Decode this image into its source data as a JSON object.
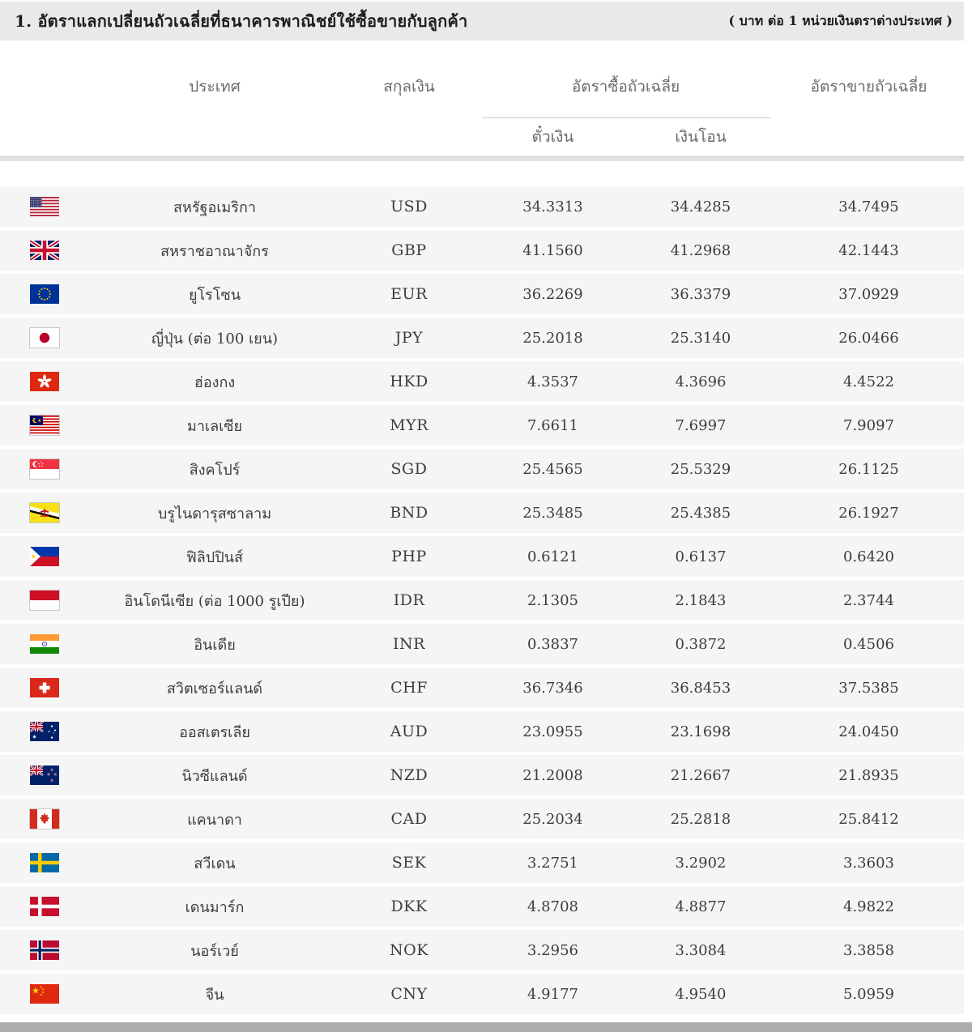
{
  "title": "1. อัตราแลกเปลี่ยนถัวเฉลี่ยที่ธนาคารพาณิชย์ใช้ซื้อขายกับลูกค้า",
  "unit_note": "( บาท ต่อ 1 หน่วยเงินตราต่างประเทศ )",
  "columns": {
    "country": "ประเทศ",
    "currency": "สกุลเงิน",
    "buy_avg": "อัตราซื้อถัวเฉลี่ย",
    "buy_bill": "ตั๋วเงิน",
    "buy_transfer": "เงินโอน",
    "sell_avg": "อัตราขายถัวเฉลี่ย"
  },
  "colors": {
    "title_bar_bg": "#e9e9e9",
    "row_bg": "#f5f5f5",
    "divider": "#e2e2e2",
    "bottom_bar": "#adadad",
    "header_text": "#6b6b6b",
    "title_text": "#1c1c1c",
    "value_text": "#3d3d3d"
  },
  "rows": [
    {
      "flag": "us",
      "country": "สหรัฐอเมริกา",
      "code": "USD",
      "bill": "34.3313",
      "transfer": "34.4285",
      "sell": "34.7495"
    },
    {
      "flag": "gb",
      "country": "สหราชอาณาจักร",
      "code": "GBP",
      "bill": "41.1560",
      "transfer": "41.2968",
      "sell": "42.1443"
    },
    {
      "flag": "eu",
      "country": "ยูโรโซน",
      "code": "EUR",
      "bill": "36.2269",
      "transfer": "36.3379",
      "sell": "37.0929"
    },
    {
      "flag": "jp",
      "country": "ญี่ปุ่น (ต่อ 100 เยน)",
      "code": "JPY",
      "bill": "25.2018",
      "transfer": "25.3140",
      "sell": "26.0466"
    },
    {
      "flag": "hk",
      "country": "ฮ่องกง",
      "code": "HKD",
      "bill": "4.3537",
      "transfer": "4.3696",
      "sell": "4.4522"
    },
    {
      "flag": "my",
      "country": "มาเลเซีย",
      "code": "MYR",
      "bill": "7.6611",
      "transfer": "7.6997",
      "sell": "7.9097"
    },
    {
      "flag": "sg",
      "country": "สิงคโปร์",
      "code": "SGD",
      "bill": "25.4565",
      "transfer": "25.5329",
      "sell": "26.1125"
    },
    {
      "flag": "bn",
      "country": "บรูไนดารุสซาลาม",
      "code": "BND",
      "bill": "25.3485",
      "transfer": "25.4385",
      "sell": "26.1927"
    },
    {
      "flag": "ph",
      "country": "ฟิลิปปินส์",
      "code": "PHP",
      "bill": "0.6121",
      "transfer": "0.6137",
      "sell": "0.6420"
    },
    {
      "flag": "id",
      "country": "อินโดนีเซีย (ต่อ 1000 รูเปีย)",
      "code": "IDR",
      "bill": "2.1305",
      "transfer": "2.1843",
      "sell": "2.3744"
    },
    {
      "flag": "in",
      "country": "อินเดีย",
      "code": "INR",
      "bill": "0.3837",
      "transfer": "0.3872",
      "sell": "0.4506"
    },
    {
      "flag": "ch",
      "country": "สวิตเซอร์แลนด์",
      "code": "CHF",
      "bill": "36.7346",
      "transfer": "36.8453",
      "sell": "37.5385"
    },
    {
      "flag": "au",
      "country": "ออสเตรเลีย",
      "code": "AUD",
      "bill": "23.0955",
      "transfer": "23.1698",
      "sell": "24.0450"
    },
    {
      "flag": "nz",
      "country": "นิวซีแลนด์",
      "code": "NZD",
      "bill": "21.2008",
      "transfer": "21.2667",
      "sell": "21.8935"
    },
    {
      "flag": "ca",
      "country": "แคนาดา",
      "code": "CAD",
      "bill": "25.2034",
      "transfer": "25.2818",
      "sell": "25.8412"
    },
    {
      "flag": "se",
      "country": "สวีเดน",
      "code": "SEK",
      "bill": "3.2751",
      "transfer": "3.2902",
      "sell": "3.3603"
    },
    {
      "flag": "dk",
      "country": "เดนมาร์ก",
      "code": "DKK",
      "bill": "4.8708",
      "transfer": "4.8877",
      "sell": "4.9822"
    },
    {
      "flag": "no",
      "country": "นอร์เวย์",
      "code": "NOK",
      "bill": "3.2956",
      "transfer": "3.3084",
      "sell": "3.3858"
    },
    {
      "flag": "cn",
      "country": "จีน",
      "code": "CNY",
      "bill": "4.9177",
      "transfer": "4.9540",
      "sell": "5.0959"
    }
  ]
}
